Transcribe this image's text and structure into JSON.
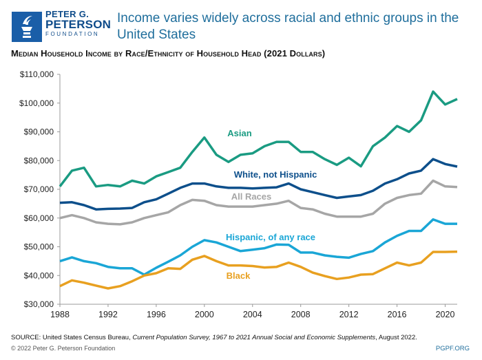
{
  "header": {
    "logo_line1": "PETER G.",
    "logo_line2": "PETERSON",
    "logo_line3": "FOUNDATION",
    "title": "Income varies widely across racial and ethnic groups in the United States"
  },
  "footer": {
    "source_prefix": "SOURCE: United States Census Bureau, ",
    "source_italic": "Current Population Survey, 1967 to 2021 Annual Social and Economic Supplements",
    "source_suffix": ", August 2022.",
    "copyright": "© 2022 Peter G. Peterson Foundation",
    "site": "PGPF.ORG"
  },
  "chart_data": {
    "type": "line",
    "title": "Median Household Income by Race/Ethnicity of Household Head (2021 Dollars)",
    "xlabel": "",
    "ylabel": "",
    "xlim": [
      1988,
      2021
    ],
    "ylim": [
      30000,
      110000
    ],
    "x_ticks": [
      "1988",
      "1992",
      "1996",
      "2000",
      "2004",
      "2008",
      "2012",
      "2016",
      "2020"
    ],
    "y_ticks": [
      "$30,000",
      "$40,000",
      "$50,000",
      "$60,000",
      "$70,000",
      "$80,000",
      "$90,000",
      "$100,000",
      "$110,000"
    ],
    "grid": false,
    "legend": "inline labels",
    "x": [
      1988,
      1989,
      1990,
      1991,
      1992,
      1993,
      1994,
      1995,
      1996,
      1997,
      1998,
      1999,
      2000,
      2001,
      2002,
      2003,
      2004,
      2005,
      2006,
      2007,
      2008,
      2009,
      2010,
      2011,
      2012,
      2013,
      2014,
      2015,
      2016,
      2017,
      2018,
      2019,
      2020,
      2021
    ],
    "series": [
      {
        "name": "Asian",
        "color": "#1a9b82",
        "values": [
          71000,
          76500,
          77500,
          71000,
          71500,
          71000,
          73000,
          72000,
          74500,
          76000,
          77500,
          83000,
          88000,
          82000,
          79500,
          82000,
          82500,
          85000,
          86500,
          86500,
          83000,
          83000,
          80500,
          78500,
          81000,
          78000,
          85000,
          88000,
          92000,
          90000,
          94000,
          104000,
          99500,
          101400
        ]
      },
      {
        "name": "White, not Hispanic",
        "color": "#0d4f8b",
        "values": [
          65300,
          65500,
          64500,
          63000,
          63200,
          63300,
          63500,
          65500,
          66500,
          68500,
          70500,
          72000,
          72000,
          71000,
          70500,
          70500,
          70300,
          70500,
          70700,
          72000,
          70000,
          69000,
          68000,
          67000,
          67500,
          68000,
          69500,
          72000,
          73500,
          75500,
          76500,
          80500,
          78800,
          77900
        ]
      },
      {
        "name": "All Races",
        "color": "#a6a6a6",
        "values": [
          60000,
          61000,
          60000,
          58500,
          58000,
          57800,
          58500,
          60000,
          61000,
          62000,
          64500,
          66300,
          66000,
          64500,
          64000,
          64000,
          64000,
          64500,
          65000,
          66000,
          63500,
          63000,
          61500,
          60500,
          60500,
          60500,
          61500,
          65000,
          67000,
          68000,
          68500,
          73000,
          71000,
          70800
        ]
      },
      {
        "name": "Hispanic, of any race",
        "color": "#1aa6d6",
        "values": [
          45000,
          46300,
          45000,
          44300,
          43000,
          42500,
          42500,
          40300,
          42700,
          44800,
          47000,
          50000,
          52300,
          51500,
          50000,
          48500,
          49000,
          49500,
          50800,
          50700,
          48000,
          48000,
          47000,
          46500,
          46200,
          47500,
          48500,
          51500,
          53800,
          55500,
          55500,
          59500,
          58000,
          58000
        ]
      },
      {
        "name": "Black",
        "color": "#e8a020",
        "values": [
          36300,
          38300,
          37500,
          36500,
          35500,
          36300,
          38000,
          40000,
          40800,
          42500,
          42300,
          45500,
          46800,
          45000,
          43500,
          43500,
          43300,
          42800,
          43000,
          44500,
          43000,
          41000,
          39800,
          38800,
          39300,
          40300,
          40500,
          42500,
          44500,
          43500,
          44500,
          48200,
          48200,
          48300
        ]
      }
    ]
  }
}
